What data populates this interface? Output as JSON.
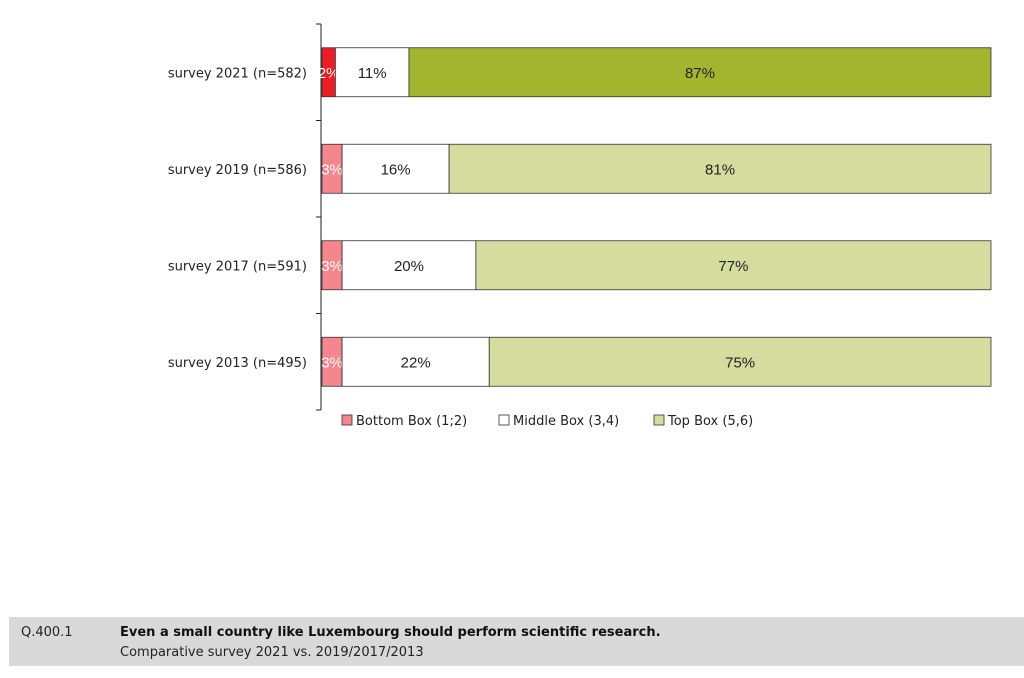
{
  "chart_data": {
    "type": "bar",
    "orientation": "horizontal-stacked-100",
    "title": "",
    "categories": [
      "survey 2021 (n=582)",
      "survey 2019 (n=586)",
      "survey 2017 (n=591)",
      "survey 2013 (n=495)"
    ],
    "series": [
      {
        "name": "Bottom Box (1;2)",
        "values": [
          2,
          3,
          3,
          3
        ],
        "labels": [
          "2%",
          "3%",
          "3%",
          "3%"
        ]
      },
      {
        "name": "Middle Box (3,4)",
        "values": [
          11,
          16,
          20,
          22
        ],
        "labels": [
          "11%",
          "16%",
          "20%",
          "22%"
        ]
      },
      {
        "name": "Top Box (5,6)",
        "values": [
          87,
          81,
          77,
          75
        ],
        "labels": [
          "87%",
          "81%",
          "77%",
          "75%"
        ]
      }
    ],
    "colors": {
      "bottom_highlight": "#ee1c25",
      "bottom": "#f4868c",
      "middle": "#ffffff",
      "top_highlight": "#a3b52e",
      "top": "#d4dc9e"
    },
    "highlight_category": "survey 2021 (n=582)",
    "legend_position": "bottom",
    "xlim": [
      0,
      100
    ]
  },
  "footer": {
    "question_id": "Q.400.1",
    "question_text": "Even a small country like Luxembourg should perform scientific research.",
    "subtitle": "Comparative survey 2021 vs. 2019/2017/2013"
  }
}
